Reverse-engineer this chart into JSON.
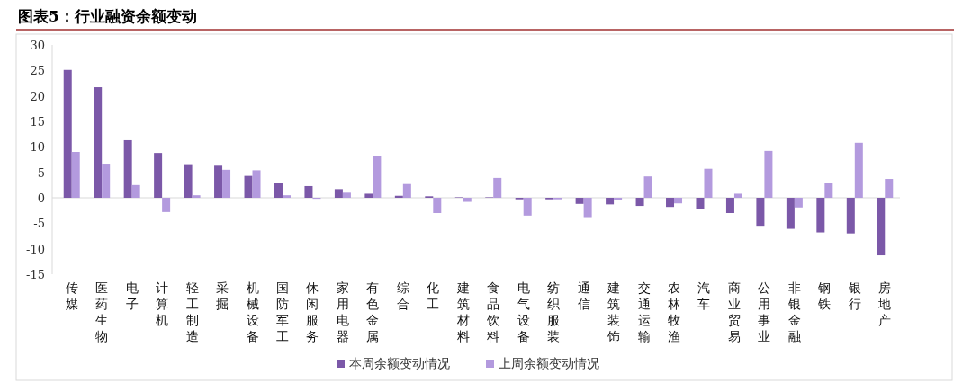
{
  "chart_data": {
    "type": "bar",
    "title": "图表5：行业融资余额变动",
    "categories": [
      "传媒",
      "医药生物",
      "电子",
      "计算机",
      "轻工制造",
      "采掘",
      "机械设备",
      "国防军工",
      "休闲服务",
      "家用电器",
      "有色金属",
      "综合",
      "化工",
      "建筑材料",
      "食品饮料",
      "电气设备",
      "纺织服装",
      "通信",
      "建筑装饰",
      "交通运输",
      "农林牧渔",
      "汽车",
      "商业贸易",
      "公用事业",
      "非银金融",
      "钢铁",
      "银行",
      "房地产"
    ],
    "series": [
      {
        "name": "本周余额变动情况",
        "color": "#7b58a8",
        "values": [
          25.1,
          21.7,
          11.3,
          8.8,
          6.6,
          6.3,
          4.3,
          3.0,
          2.3,
          1.7,
          0.8,
          0.4,
          0.3,
          0.1,
          0.1,
          -0.3,
          -0.3,
          -1.2,
          -1.3,
          -1.6,
          -1.8,
          -2.2,
          -3.0,
          -5.5,
          -6.1,
          -6.8,
          -7.0,
          -11.3
        ]
      },
      {
        "name": "上周余额变动情况",
        "color": "#b39ade",
        "values": [
          9.0,
          6.7,
          2.5,
          -2.8,
          0.5,
          5.5,
          5.4,
          0.5,
          -0.2,
          1.0,
          8.2,
          2.7,
          -3.0,
          -0.8,
          3.9,
          -3.5,
          -0.3,
          -3.8,
          -0.4,
          4.2,
          -1.1,
          5.7,
          0.8,
          9.2,
          -1.9,
          2.9,
          10.8,
          3.7
        ]
      }
    ],
    "ylim": [
      -15,
      30
    ],
    "yticks": [
      -15,
      -10,
      -5,
      0,
      5,
      10,
      15,
      20,
      25,
      30
    ],
    "legend": "bottom"
  }
}
